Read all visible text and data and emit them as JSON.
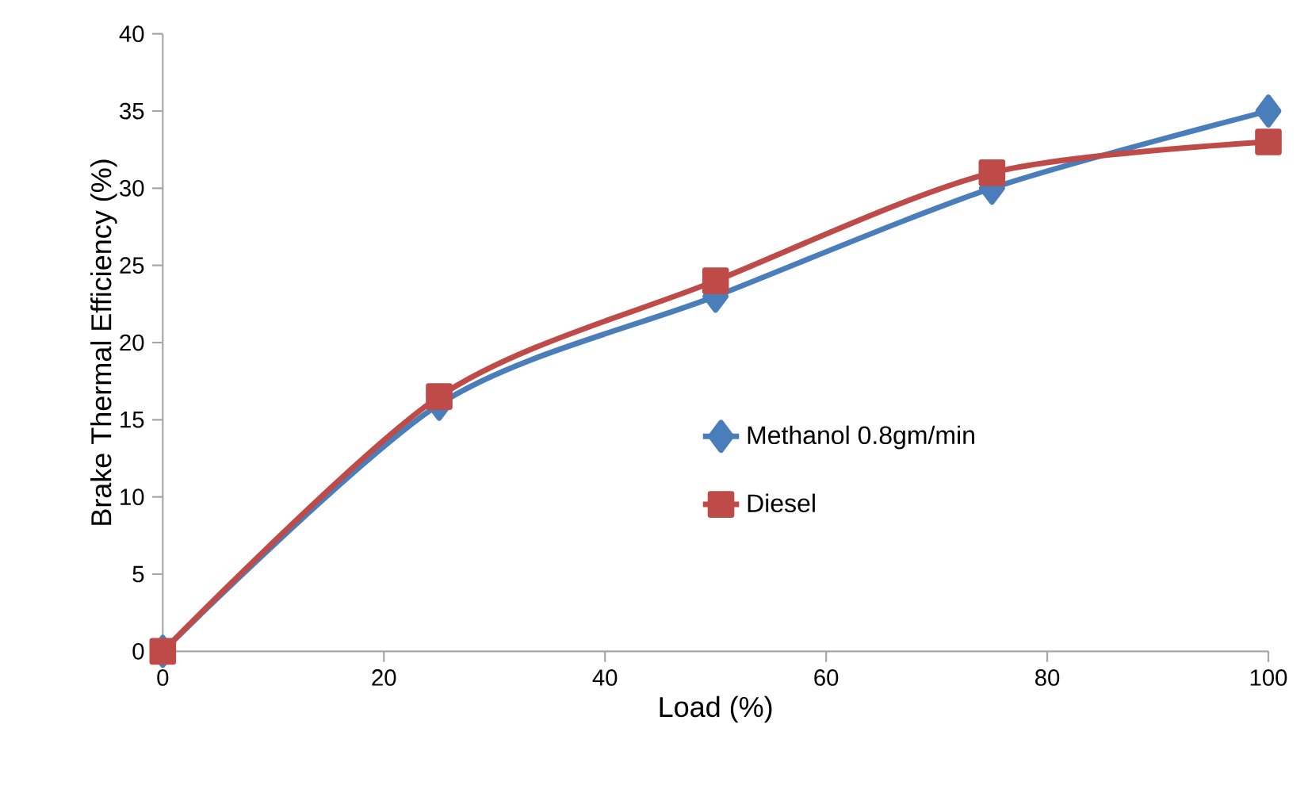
{
  "chart_data": {
    "type": "line",
    "xlabel": "Load (%)",
    "ylabel": "Brake Thermal Efficiency (%)",
    "x": [
      0,
      25,
      50,
      75,
      100
    ],
    "series": [
      {
        "name": "Methanol 0.8gm/min",
        "color": "#4a7ebb",
        "marker": "diamond",
        "values": [
          0,
          16,
          23,
          30,
          35
        ]
      },
      {
        "name": "Diesel",
        "color": "#be4b48",
        "marker": "square",
        "values": [
          0,
          16.5,
          24,
          31,
          33
        ]
      }
    ],
    "xlim": [
      0,
      100
    ],
    "ylim": [
      0,
      40
    ],
    "xticks": [
      0,
      20,
      40,
      60,
      80,
      100
    ],
    "yticks": [
      0,
      5,
      10,
      15,
      20,
      25,
      30,
      35,
      40
    ],
    "grid": false,
    "legend": "right",
    "line_style": "solid"
  }
}
